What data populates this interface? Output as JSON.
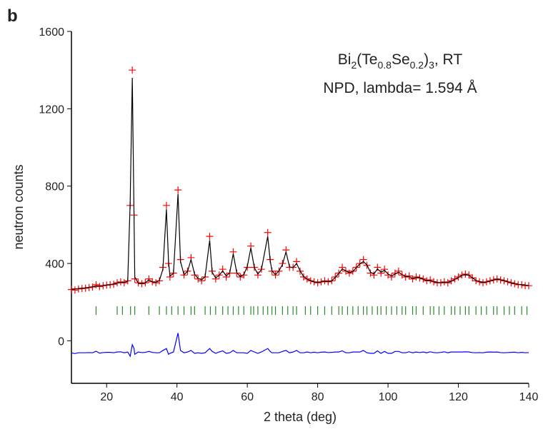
{
  "chart_data": {
    "type": "rietveld",
    "panel_label": "b",
    "annotations": [
      [
        {
          "text": "Bi"
        },
        {
          "text": "2",
          "sub": true
        },
        {
          "text": "(Te"
        },
        {
          "text": "0.8",
          "sub": true
        },
        {
          "text": "Se"
        },
        {
          "text": "0.2",
          "sub": true
        },
        {
          "text": ")"
        },
        {
          "text": "3",
          "sub": true
        },
        {
          "text": ", RT"
        }
      ],
      [
        {
          "text": "NPD, lambda= 1.594 Å"
        }
      ]
    ],
    "x_label": "2 theta (deg)",
    "y_label": "neutron counts",
    "xlim": [
      10,
      140
    ],
    "xticks": [
      20,
      40,
      60,
      80,
      100,
      120,
      140
    ],
    "ylim": [
      -220,
      1600
    ],
    "yticks": [
      0,
      400,
      800,
      1200,
      1600
    ],
    "x": [
      10,
      11,
      12,
      13,
      14,
      15,
      16,
      17,
      18,
      19,
      20,
      21,
      22,
      23,
      24,
      25,
      26,
      26.7,
      27.3,
      27.8,
      28,
      29,
      30,
      31,
      32,
      33,
      34,
      35,
      36,
      37,
      37.6,
      38,
      39,
      40.3,
      41,
      42,
      43,
      44,
      45,
      46,
      47,
      48,
      49.3,
      50,
      51,
      52,
      53,
      54,
      55,
      56,
      57,
      58,
      59,
      60,
      61,
      62,
      63,
      64,
      65.8,
      66.5,
      67,
      68,
      69,
      70,
      71,
      72,
      73,
      74,
      75,
      76,
      77,
      78,
      79,
      80,
      81,
      82,
      83,
      84,
      85,
      86,
      87,
      88,
      89,
      90,
      91,
      92,
      93,
      94,
      95,
      96,
      97,
      98,
      99,
      100,
      101,
      102,
      103,
      104,
      105,
      106,
      107,
      108,
      109,
      110,
      111,
      112,
      113,
      114,
      115,
      116,
      117,
      118,
      119,
      120,
      121,
      122,
      123,
      124,
      125,
      126,
      127,
      128,
      129,
      130,
      131,
      132,
      133,
      134,
      135,
      136,
      137,
      138,
      139,
      140
    ],
    "series": [
      {
        "name": "observed",
        "color": "#ff0000",
        "style": "plus",
        "values": [
          265,
          262,
          268,
          270,
          272,
          275,
          278,
          290,
          280,
          285,
          288,
          290,
          292,
          300,
          305,
          300,
          310,
          700,
          1400,
          650,
          320,
          300,
          295,
          300,
          320,
          305,
          300,
          310,
          380,
          700,
          400,
          330,
          350,
          780,
          420,
          340,
          360,
          430,
          340,
          320,
          310,
          330,
          540,
          360,
          320,
          340,
          370,
          330,
          350,
          460,
          350,
          330,
          340,
          380,
          490,
          380,
          340,
          370,
          560,
          420,
          360,
          340,
          360,
          400,
          470,
          380,
          380,
          410,
          360,
          330,
          320,
          310,
          305,
          300,
          305,
          310,
          305,
          310,
          330,
          350,
          380,
          360,
          350,
          360,
          380,
          400,
          420,
          390,
          350,
          340,
          380,
          350,
          370,
          340,
          330,
          350,
          360,
          340,
          330,
          335,
          320,
          330,
          325,
          320,
          310,
          315,
          305,
          300,
          300,
          305,
          300,
          310,
          320,
          330,
          340,
          345,
          340,
          325,
          310,
          305,
          300,
          305,
          310,
          315,
          320,
          315,
          310,
          305,
          300,
          295,
          290,
          290,
          285,
          285
        ]
      },
      {
        "name": "calculated",
        "color": "#000000",
        "style": "line",
        "values": [
          268,
          268,
          270,
          272,
          274,
          276,
          280,
          284,
          284,
          286,
          288,
          290,
          294,
          298,
          302,
          302,
          308,
          720,
          1360,
          630,
          330,
          298,
          296,
          300,
          315,
          305,
          302,
          312,
          370,
          680,
          410,
          335,
          348,
          760,
          410,
          342,
          358,
          420,
          345,
          322,
          315,
          332,
          520,
          355,
          325,
          338,
          362,
          335,
          352,
          450,
          352,
          332,
          342,
          385,
          480,
          378,
          345,
          368,
          540,
          415,
          362,
          342,
          362,
          395,
          460,
          382,
          378,
          400,
          362,
          332,
          318,
          312,
          304,
          302,
          304,
          308,
          306,
          310,
          328,
          348,
          372,
          362,
          352,
          358,
          378,
          398,
          410,
          392,
          355,
          345,
          372,
          355,
          365,
          345,
          335,
          345,
          355,
          342,
          332,
          332,
          322,
          328,
          326,
          318,
          312,
          312,
          306,
          302,
          300,
          302,
          302,
          308,
          318,
          328,
          338,
          342,
          338,
          326,
          312,
          306,
          302,
          304,
          308,
          314,
          318,
          316,
          312,
          306,
          300,
          296,
          292,
          290,
          288,
          286
        ]
      },
      {
        "name": "difference",
        "color": "#0000ff",
        "style": "line",
        "values": [
          -63,
          -66,
          -62,
          -62,
          -62,
          -61,
          -62,
          -54,
          -64,
          -61,
          -60,
          -60,
          -62,
          -58,
          -57,
          -62,
          -58,
          -80,
          -20,
          -40,
          -70,
          -58,
          -61,
          -60,
          -55,
          -60,
          -62,
          -62,
          -50,
          -40,
          -70,
          -65,
          -58,
          40,
          -50,
          -62,
          -58,
          -50,
          -65,
          -62,
          -65,
          -62,
          -40,
          -55,
          -65,
          -58,
          -52,
          -65,
          -62,
          -50,
          -62,
          -62,
          -62,
          -65,
          -50,
          -58,
          -65,
          -58,
          -40,
          -55,
          -62,
          -62,
          -62,
          -55,
          -50,
          -62,
          -58,
          -50,
          -62,
          -62,
          -58,
          -62,
          -59,
          -62,
          -59,
          -58,
          -61,
          -60,
          -58,
          -58,
          -52,
          -62,
          -62,
          -58,
          -58,
          -58,
          -50,
          -62,
          -65,
          -65,
          -52,
          -65,
          -55,
          -65,
          -65,
          -55,
          -55,
          -62,
          -62,
          -57,
          -62,
          -58,
          -61,
          -58,
          -62,
          -57,
          -61,
          -62,
          -60,
          -57,
          -62,
          -58,
          -58,
          -58,
          -58,
          -57,
          -58,
          -61,
          -62,
          -61,
          -62,
          -59,
          -58,
          -59,
          -58,
          -61,
          -62,
          -61,
          -60,
          -59,
          -62,
          -60,
          -62,
          -61
        ]
      }
    ],
    "bragg_color": "#2a8a2a",
    "bragg_positions": [
      17,
      23,
      24.5,
      26.8,
      28,
      32,
      35,
      37,
      38.5,
      40.3,
      42,
      44,
      45,
      48,
      49.5,
      51,
      53,
      54.5,
      56,
      57.5,
      59,
      61,
      61.8,
      63,
      64.5,
      65.8,
      67,
      68,
      70,
      71.5,
      73,
      74,
      76.5,
      78,
      80,
      82,
      84,
      86,
      87,
      88.5,
      90,
      91.5,
      93,
      94,
      95.5,
      97,
      98,
      99.5,
      101,
      102.5,
      104,
      105,
      107,
      108,
      110,
      112,
      113,
      114.5,
      116,
      118,
      119,
      120.5,
      122,
      123,
      125,
      126.5,
      128,
      130,
      131,
      133,
      134.5,
      136,
      138,
      139.5
    ]
  }
}
